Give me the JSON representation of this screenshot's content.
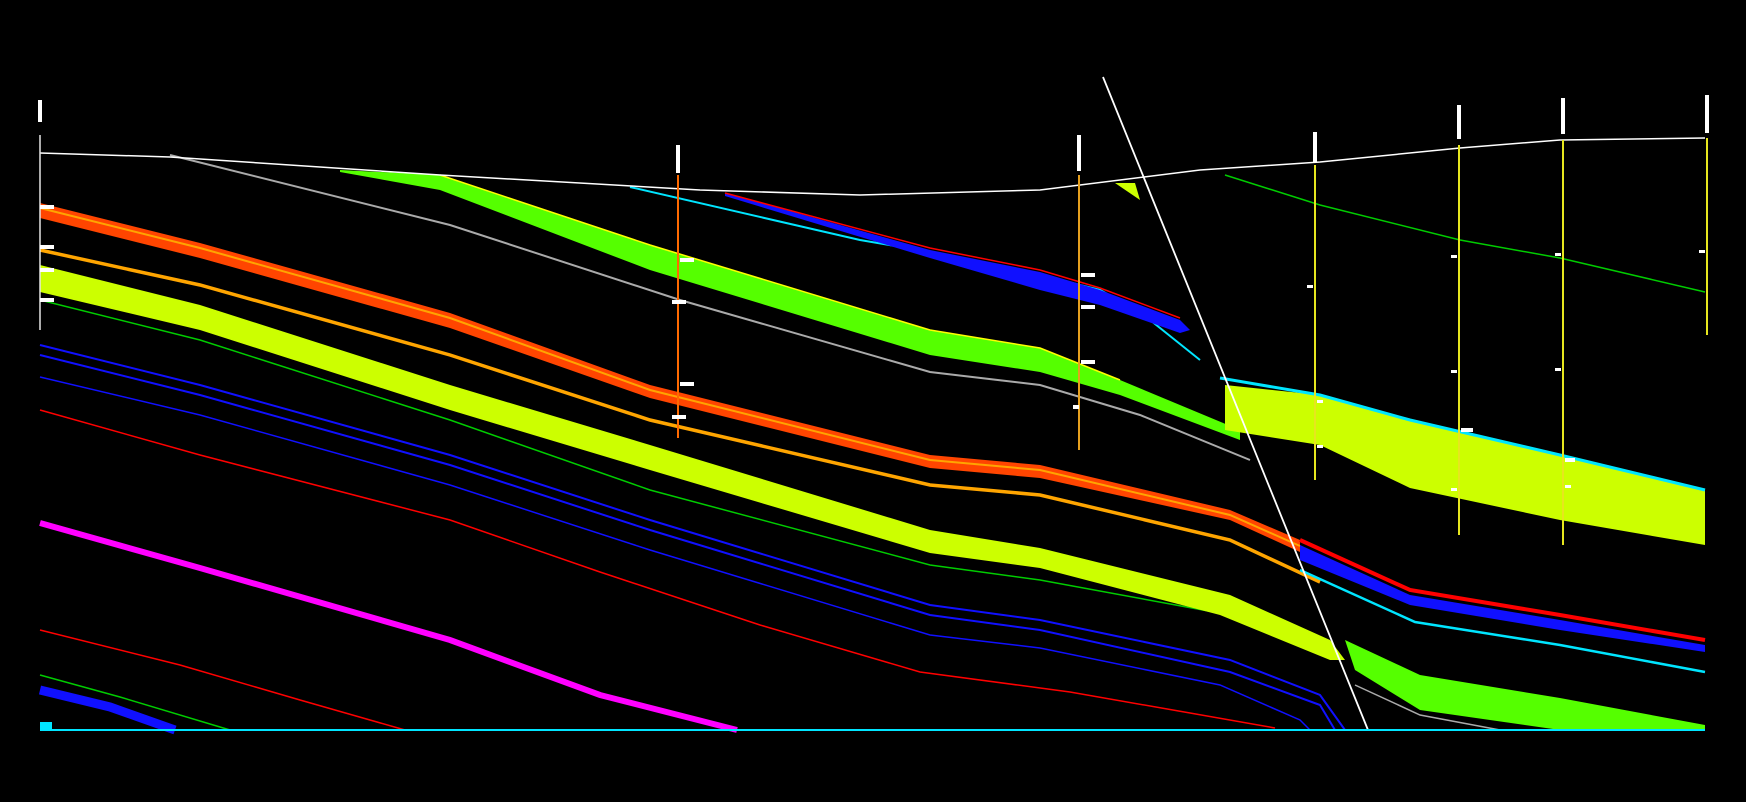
{
  "colors": {
    "background": "#000000",
    "surface": "#FFFFFF",
    "well_left": "#E5E5E5",
    "well_orange": "#FF6A00",
    "well_yellow": "#E6E61E",
    "fault": "#FFFFFF",
    "green_band": "#55FF00",
    "lime_band": "#CCFF00",
    "orange_red": "#FF4500",
    "orange": "#FFA500",
    "blue": "#1010FF",
    "cyan": "#00E5FF",
    "red": "#FF0000",
    "magenta": "#FF00FF",
    "green": "#00CC00",
    "grey": "#AAAAAA"
  },
  "wells": [
    {
      "id": "w1",
      "color": "well_left"
    },
    {
      "id": "w2",
      "color": "well_orange"
    },
    {
      "id": "w3",
      "color": "well_orange"
    },
    {
      "id": "w4",
      "color": "well_yellow"
    },
    {
      "id": "w5",
      "color": "well_yellow"
    },
    {
      "id": "w6",
      "color": "well_yellow"
    },
    {
      "id": "w7",
      "color": "well_yellow"
    }
  ],
  "horizons": [
    {
      "id": "surface",
      "color": "surface"
    },
    {
      "id": "grey-shallow",
      "color": "grey"
    },
    {
      "id": "green-band-upper",
      "color": "green_band"
    },
    {
      "id": "blue-upper",
      "color": "blue"
    },
    {
      "id": "cyan-upper",
      "color": "cyan"
    },
    {
      "id": "orange-red-band",
      "color": "orange_red"
    },
    {
      "id": "orange-line",
      "color": "orange"
    },
    {
      "id": "lime-band",
      "color": "lime_band"
    },
    {
      "id": "green-line",
      "color": "green"
    },
    {
      "id": "blue-pair",
      "color": "blue"
    },
    {
      "id": "red-line",
      "color": "red"
    },
    {
      "id": "magenta-line",
      "color": "magenta"
    },
    {
      "id": "red-deep",
      "color": "red"
    },
    {
      "id": "blue-deep",
      "color": "blue"
    },
    {
      "id": "cyan-base",
      "color": "cyan"
    }
  ],
  "fault": {
    "id": "main-fault",
    "color": "fault"
  }
}
